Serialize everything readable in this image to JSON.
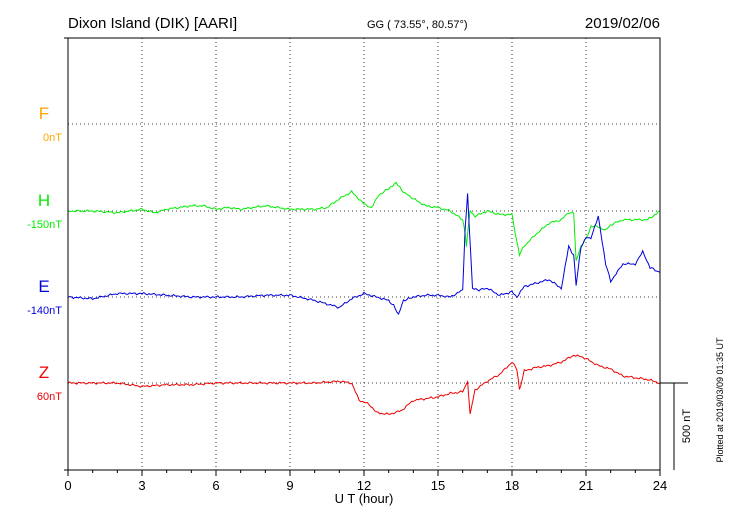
{
  "chart_data": {
    "type": "line",
    "title": "Dixon Island (DIK)  [AARI]",
    "coords": "GG ( 73.55°,  80.57°)",
    "date": "2019/02/06",
    "xlabel": "U T (hour)",
    "xlim": [
      0,
      24
    ],
    "x_ticks": [
      "0",
      "3",
      "6",
      "9",
      "12",
      "15",
      "18",
      "21",
      "24"
    ],
    "grid": true,
    "scale_bar": {
      "label": "500 nT",
      "value_nT": 500
    },
    "plotted_note": "Plotted at 2019/03/09 01:35 UT",
    "series": [
      {
        "name": "F",
        "baseline": "0nT",
        "color": "#ffa500",
        "values": []
      },
      {
        "name": "H",
        "baseline": "-150nT",
        "color": "#00ee00",
        "x": [
          0,
          1,
          2,
          3,
          3.5,
          4,
          5,
          5.5,
          6,
          6.5,
          7,
          8,
          9,
          10,
          10.5,
          11,
          11.5,
          12,
          12.3,
          12.6,
          13,
          13.3,
          13.6,
          14,
          14.5,
          15,
          15.5,
          16,
          16.1,
          16.15,
          16.3,
          16.5,
          17,
          17.5,
          18,
          18.2,
          18.3,
          18.5,
          19,
          19.5,
          20,
          20.3,
          20.5,
          20.6,
          20.8,
          21,
          21.2,
          21.5,
          21.8,
          22,
          22.5,
          23,
          23.5,
          24
        ],
        "values": [
          -150,
          -150,
          -160,
          -140,
          -160,
          -140,
          -120,
          -120,
          -140,
          -130,
          -140,
          -120,
          -140,
          -140,
          -130,
          -80,
          -40,
          -110,
          -130,
          -60,
          -20,
          10,
          -40,
          -80,
          -120,
          -130,
          -150,
          -200,
          -280,
          -350,
          -150,
          -180,
          -150,
          -170,
          -170,
          -330,
          -400,
          -350,
          -280,
          -220,
          -200,
          -160,
          -160,
          -440,
          -350,
          -310,
          -240,
          -240,
          -260,
          -230,
          -200,
          -200,
          -200,
          -150
        ]
      },
      {
        "name": "E",
        "baseline": "-140nT",
        "color": "#0000dd",
        "x": [
          0,
          1,
          2,
          3,
          4,
          5,
          6,
          7,
          8,
          9,
          10,
          10.5,
          11,
          11.5,
          12,
          12.5,
          13,
          13.2,
          13.4,
          13.6,
          14,
          14.5,
          15,
          15.5,
          16,
          16.1,
          16.2,
          16.4,
          16.6,
          17,
          17.5,
          18,
          18.2,
          18.5,
          19,
          19.5,
          20,
          20.3,
          20.5,
          20.6,
          20.8,
          21,
          21.2,
          21.5,
          21.8,
          22,
          22.5,
          23,
          23.3,
          23.6,
          24
        ],
        "values": [
          -140,
          -150,
          -120,
          -120,
          -130,
          -140,
          -140,
          -140,
          -130,
          -130,
          -160,
          -180,
          -200,
          -150,
          -120,
          -140,
          -160,
          -190,
          -240,
          -160,
          -140,
          -130,
          -130,
          -140,
          -100,
          250,
          450,
          -90,
          -100,
          -90,
          -130,
          -110,
          -140,
          -80,
          -60,
          -40,
          -90,
          150,
          100,
          -70,
          150,
          200,
          200,
          320,
          50,
          -50,
          50,
          50,
          120,
          30,
          0
        ]
      },
      {
        "name": "Z",
        "baseline": "60nT",
        "color": "#ee0000",
        "x": [
          0,
          1,
          2,
          3,
          4,
          5,
          6,
          7,
          8,
          9,
          10,
          11,
          11.5,
          11.8,
          12.2,
          12.5,
          13,
          13.5,
          14,
          15,
          15.5,
          16,
          16.2,
          16.3,
          16.5,
          17,
          17.5,
          18,
          18.2,
          18.3,
          18.5,
          19,
          19.5,
          20,
          20.5,
          20.8,
          21,
          21.5,
          22,
          22.5,
          23,
          23.5,
          24
        ],
        "values": [
          60,
          60,
          60,
          40,
          50,
          50,
          60,
          60,
          60,
          60,
          60,
          70,
          60,
          -40,
          -60,
          -110,
          -120,
          -100,
          -40,
          -20,
          0,
          10,
          70,
          -120,
          20,
          70,
          110,
          180,
          140,
          20,
          130,
          150,
          160,
          180,
          220,
          210,
          200,
          160,
          140,
          100,
          90,
          80,
          60
        ]
      }
    ]
  }
}
